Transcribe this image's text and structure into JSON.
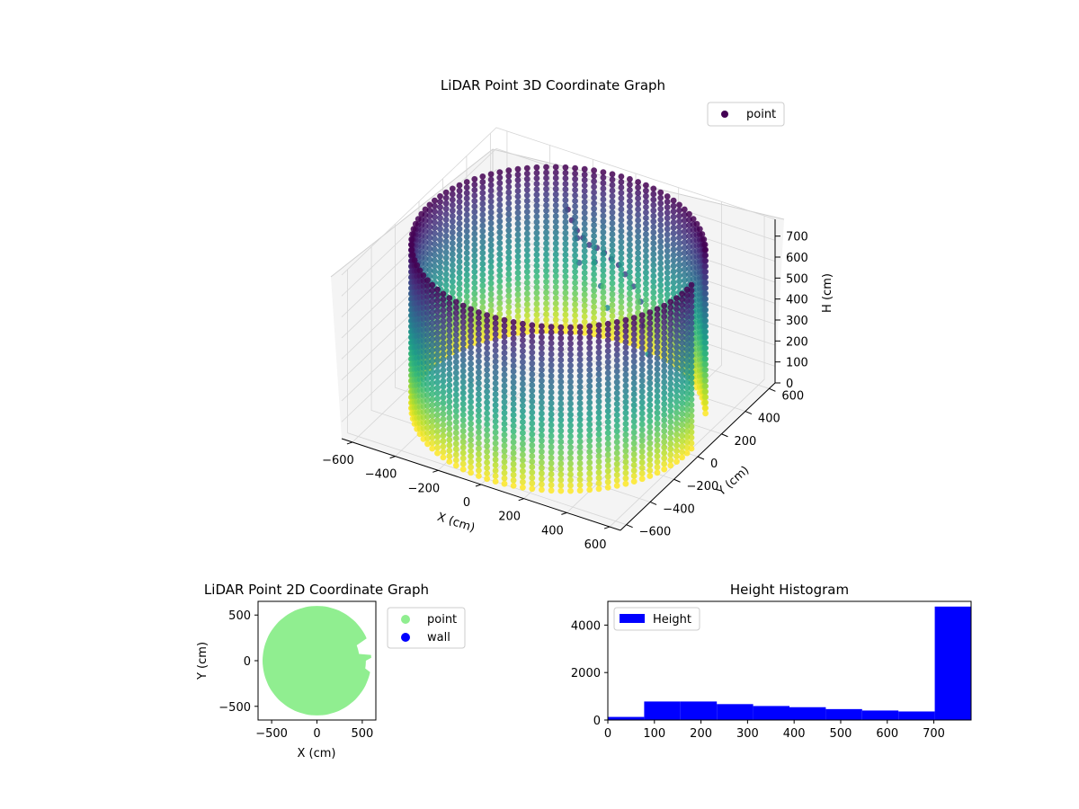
{
  "figure": {
    "colors": {
      "viridis_low": "#440154",
      "viridis_mid": "#21918c",
      "viridis_high": "#fde725",
      "scatter2d": "#90ee90",
      "wall": "#0000ff",
      "hist": "#0000ff"
    }
  },
  "chart_data": [
    {
      "type": "scatter",
      "subtype": "3d",
      "title": "LiDAR Point 3D Coordinate Graph",
      "xlabel": "X (cm)",
      "ylabel": "Y (cm)",
      "zlabel": "H (cm)",
      "xticks": [
        "−600",
        "−400",
        "−200",
        "0",
        "200",
        "400",
        "600"
      ],
      "yticks": [
        "−600",
        "−400",
        "−200",
        "0",
        "200",
        "400",
        "600"
      ],
      "zticks": [
        "0",
        "100",
        "200",
        "300",
        "400",
        "500",
        "600",
        "700"
      ],
      "xlim": [
        -650,
        650
      ],
      "ylim": [
        -650,
        650
      ],
      "zlim": [
        0,
        780
      ],
      "z_inverted": true,
      "colormap": "viridis",
      "legend": {
        "entries": [
          "point"
        ],
        "placement": "top-right"
      },
      "shape": {
        "description_of_data": "cylindrical wall of points, radius ~600 cm, heights 0-780 cm, with an opening near the +X/+Y side and an interior object near the top",
        "radius": 600,
        "height_max": 780,
        "gap_angle_deg": [
          0,
          30
        ]
      }
    },
    {
      "type": "scatter",
      "title": "LiDAR Point 2D Coordinate Graph",
      "xlabel": "X (cm)",
      "ylabel": "Y (cm)",
      "xticks": [
        "−500",
        "0",
        "500"
      ],
      "yticks": [
        "500",
        "0",
        "−500"
      ],
      "xlim": [
        -650,
        650
      ],
      "ylim": [
        -650,
        650
      ],
      "legend": {
        "entries": [
          "point",
          "wall"
        ],
        "placement": "outside-right"
      },
      "shape": {
        "radius": 600
      }
    },
    {
      "type": "bar",
      "subtype": "histogram",
      "title": "Height Histogram",
      "xlabel": "",
      "ylabel": "",
      "xticks": [
        "0",
        "100",
        "200",
        "300",
        "400",
        "500",
        "600",
        "700"
      ],
      "yticks": [
        "0",
        "2000",
        "4000"
      ],
      "xlim": [
        0,
        780
      ],
      "ylim": [
        0,
        5000
      ],
      "bin_edges": [
        0,
        78,
        156,
        234,
        312,
        390,
        468,
        546,
        624,
        702,
        780
      ],
      "values": [
        130,
        780,
        780,
        670,
        590,
        540,
        460,
        400,
        360,
        4780
      ],
      "legend": {
        "entries": [
          "Height"
        ],
        "placement": "top-left"
      }
    }
  ]
}
